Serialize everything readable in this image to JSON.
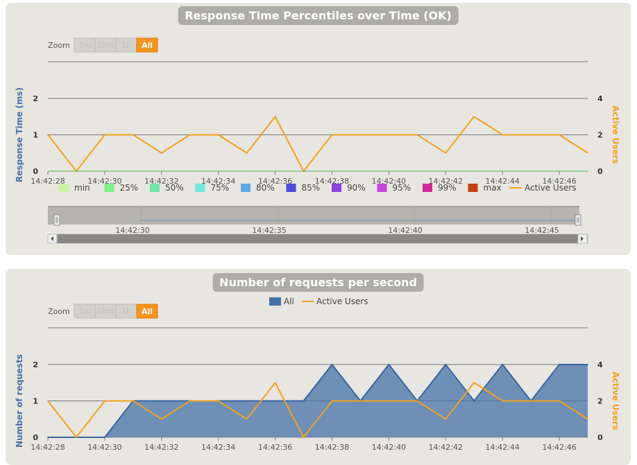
{
  "chart_data": [
    {
      "type": "line",
      "title": "Response Time Percentiles over Time (OK)",
      "ylabel": "Response Time (ms)",
      "y2label": "Active Users",
      "ylim": [
        0,
        2
      ],
      "y2lim": [
        0,
        4
      ],
      "y_ticks": [
        "0",
        "1",
        "2"
      ],
      "y2_ticks": [
        "0",
        "2",
        "4"
      ],
      "x_ticks": [
        "14:42:28",
        "14:42:30",
        "14:42:32",
        "14:42:34",
        "14:42:36",
        "14:42:38",
        "14:42:40",
        "14:42:42",
        "14:42:44",
        "14:42:46"
      ],
      "x_seconds": [
        0,
        1,
        2,
        3,
        4,
        5,
        6,
        7,
        8,
        9,
        10,
        11,
        12,
        13,
        14,
        15,
        16,
        17,
        18,
        19
      ],
      "legend": [
        "min",
        "25%",
        "50%",
        "75%",
        "80%",
        "85%",
        "90%",
        "95%",
        "99%",
        "max",
        "Active Users"
      ],
      "legend_colors": [
        "#c9f7a0",
        "#7ff08a",
        "#6fe6a8",
        "#70e8dc",
        "#5aaae6",
        "#4a4ad8",
        "#8a44e0",
        "#c846e0",
        "#d62a9a",
        "#c8400a",
        "#f5a11c"
      ],
      "series": [
        {
          "name": "Active Users",
          "color": "#f5a11c",
          "values": [
            2,
            0,
            2,
            2,
            1,
            2,
            2,
            1,
            3,
            0,
            2,
            2,
            2,
            2,
            1,
            3,
            2,
            2,
            2,
            1
          ]
        }
      ],
      "zoom": {
        "label": "Zoom",
        "buttons": [
          "1m",
          "10m",
          "1h",
          "All"
        ],
        "selected": "All"
      },
      "navigator_ticks": [
        "14:42:30",
        "14:42:35",
        "14:42:40",
        "14:42:45"
      ]
    },
    {
      "type": "area",
      "title": "Number of requests per second",
      "ylabel": "Number of requests",
      "y2label": "Active Users",
      "ylim": [
        0,
        2
      ],
      "y2lim": [
        0,
        4
      ],
      "y_ticks": [
        "0",
        "1",
        "2"
      ],
      "y2_ticks": [
        "0",
        "2",
        "4"
      ],
      "x_ticks": [
        "14:42:28",
        "14:42:30",
        "14:42:32",
        "14:42:34",
        "14:42:36",
        "14:42:38",
        "14:42:40",
        "14:42:42",
        "14:42:44",
        "14:42:46"
      ],
      "x_seconds": [
        0,
        1,
        2,
        3,
        4,
        5,
        6,
        7,
        8,
        9,
        10,
        11,
        12,
        13,
        14,
        15,
        16,
        17,
        18,
        19
      ],
      "legend": [
        "All",
        "Active Users"
      ],
      "series": [
        {
          "name": "All",
          "color": "#4572a7",
          "values": [
            0,
            0,
            0,
            1,
            1,
            1,
            1,
            1,
            1,
            1,
            2,
            1,
            2,
            1,
            2,
            1,
            2,
            1,
            2,
            2
          ]
        },
        {
          "name": "Active Users",
          "color": "#f5a11c",
          "values": [
            2,
            0,
            2,
            2,
            1,
            2,
            2,
            1,
            3,
            0,
            2,
            2,
            2,
            2,
            1,
            3,
            2,
            2,
            2,
            1
          ]
        }
      ],
      "zoom": {
        "label": "Zoom",
        "buttons": [
          "1m",
          "10m",
          "1h",
          "All"
        ],
        "selected": "All"
      }
    }
  ]
}
